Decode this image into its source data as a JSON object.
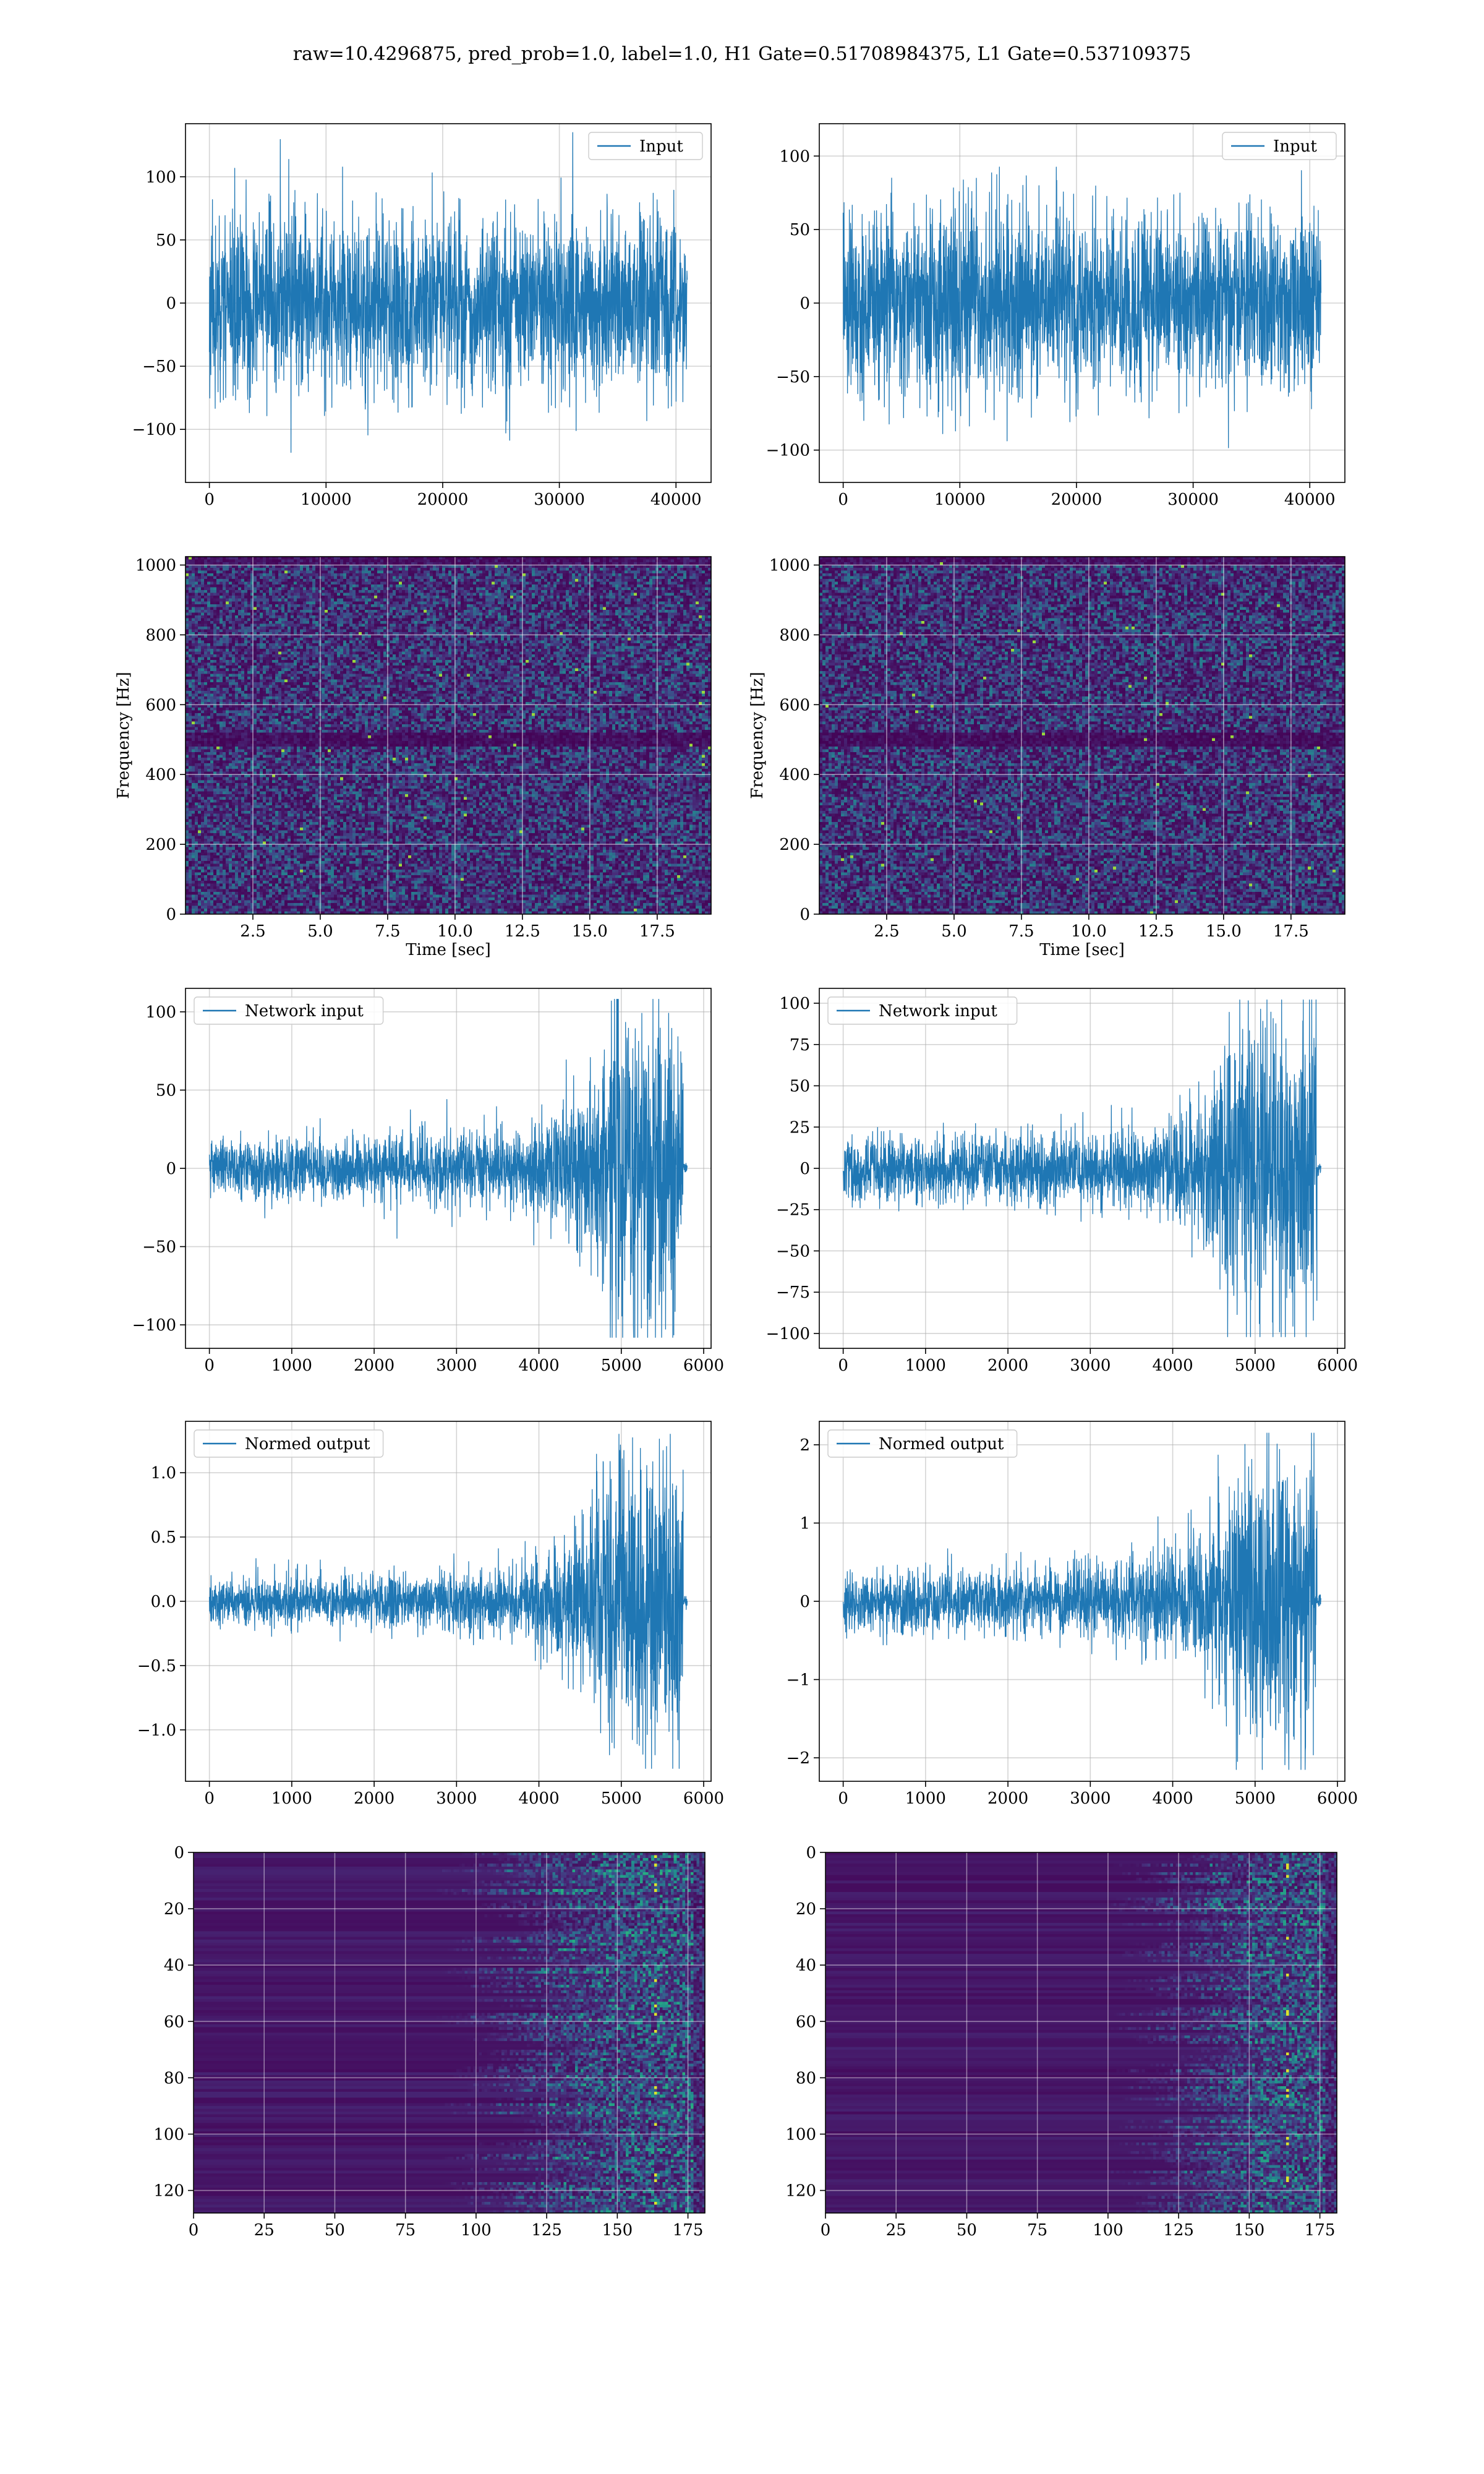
{
  "figure": {
    "suptitle": "raw=10.4296875, pred_prob=1.0, label=1.0, H1 Gate=0.51708984375, L1 Gate=0.537109375",
    "colors": {
      "line": "#1f77b4",
      "cmap_low": "#440154",
      "grid": "#b0b0b0"
    }
  },
  "chart_data": [
    {
      "id": "h1-input",
      "type": "line",
      "series": [
        {
          "name": "Input",
          "shape": "noise",
          "amplitude": 55,
          "max_abs": 135
        }
      ],
      "xlim": [
        -2048,
        43008
      ],
      "ylim": [
        -142,
        142
      ],
      "xticks": [
        0,
        10000,
        20000,
        30000,
        40000
      ],
      "xtick_labels": [
        "0",
        "10000",
        "20000",
        "30000",
        "40000"
      ],
      "yticks": [
        -100,
        -50,
        0,
        50,
        100
      ],
      "ytick_labels": [
        "−100",
        "−50",
        "0",
        "50",
        "100"
      ],
      "x_range": [
        0,
        40960
      ],
      "legend": "upper right",
      "grid": true,
      "xlabel": "",
      "ylabel": ""
    },
    {
      "id": "l1-input",
      "type": "line",
      "series": [
        {
          "name": "Input",
          "shape": "noise",
          "amplitude": 50,
          "max_abs": 110
        }
      ],
      "xlim": [
        -2048,
        43008
      ],
      "ylim": [
        -122,
        122
      ],
      "xticks": [
        0,
        10000,
        20000,
        30000,
        40000
      ],
      "xtick_labels": [
        "0",
        "10000",
        "20000",
        "30000",
        "40000"
      ],
      "yticks": [
        -100,
        -50,
        0,
        50,
        100
      ],
      "ytick_labels": [
        "−100",
        "−50",
        "0",
        "50",
        "100"
      ],
      "x_range": [
        0,
        40960
      ],
      "legend": "upper right",
      "grid": true,
      "xlabel": "",
      "ylabel": ""
    },
    {
      "id": "h1-spectrogram",
      "type": "heatmap",
      "xlabel": "Time [sec]",
      "ylabel": "Frequency [Hz]",
      "xlim": [
        0,
        19.5
      ],
      "ylim": [
        0,
        1024
      ],
      "xticks": [
        2.5,
        5.0,
        7.5,
        10.0,
        12.5,
        15.0,
        17.5
      ],
      "xtick_labels": [
        "2.5",
        "5.0",
        "7.5",
        "10.0",
        "12.5",
        "15.0",
        "17.5"
      ],
      "yticks": [
        0,
        200,
        400,
        600,
        800,
        1000
      ],
      "ytick_labels": [
        "0",
        "200",
        "400",
        "600",
        "800",
        "1000"
      ],
      "dark_band_hz": 500,
      "grid": true
    },
    {
      "id": "l1-spectrogram",
      "type": "heatmap",
      "xlabel": "Time [sec]",
      "ylabel": "Frequency [Hz]",
      "xlim": [
        0,
        19.5
      ],
      "ylim": [
        0,
        1024
      ],
      "xticks": [
        2.5,
        5.0,
        7.5,
        10.0,
        12.5,
        15.0,
        17.5
      ],
      "xtick_labels": [
        "2.5",
        "5.0",
        "7.5",
        "10.0",
        "12.5",
        "15.0",
        "17.5"
      ],
      "yticks": [
        0,
        200,
        400,
        600,
        800,
        1000
      ],
      "ytick_labels": [
        "0",
        "200",
        "400",
        "600",
        "800",
        "1000"
      ],
      "dark_band_hz": 500,
      "grid": true
    },
    {
      "id": "h1-network-input",
      "type": "line",
      "series": [
        {
          "name": "Network input",
          "shape": "chirp",
          "amplitude": 14,
          "max_abs": 108
        }
      ],
      "xlim": [
        -290,
        6090
      ],
      "ylim": [
        -115,
        115
      ],
      "xticks": [
        0,
        1000,
        2000,
        3000,
        4000,
        5000,
        6000
      ],
      "xtick_labels": [
        "0",
        "1000",
        "2000",
        "3000",
        "4000",
        "5000",
        "6000"
      ],
      "yticks": [
        -100,
        -50,
        0,
        50,
        100
      ],
      "ytick_labels": [
        "−100",
        "−50",
        "0",
        "50",
        "100"
      ],
      "x_range": [
        0,
        5800
      ],
      "legend": "upper left",
      "grid": true,
      "xlabel": "",
      "ylabel": ""
    },
    {
      "id": "l1-network-input",
      "type": "line",
      "series": [
        {
          "name": "Network input",
          "shape": "chirp",
          "amplitude": 14,
          "max_abs": 102
        }
      ],
      "xlim": [
        -290,
        6090
      ],
      "ylim": [
        -109,
        109
      ],
      "xticks": [
        0,
        1000,
        2000,
        3000,
        4000,
        5000,
        6000
      ],
      "xtick_labels": [
        "0",
        "1000",
        "2000",
        "3000",
        "4000",
        "5000",
        "6000"
      ],
      "yticks": [
        -100,
        -75,
        -50,
        -25,
        0,
        25,
        50,
        75,
        100
      ],
      "ytick_labels": [
        "−100",
        "−75",
        "−50",
        "−25",
        "0",
        "25",
        "50",
        "75",
        "100"
      ],
      "x_range": [
        0,
        5800
      ],
      "legend": "upper left",
      "grid": true,
      "xlabel": "",
      "ylabel": ""
    },
    {
      "id": "h1-normed-output",
      "type": "line",
      "series": [
        {
          "name": "Normed output",
          "shape": "chirp",
          "amplitude": 0.14,
          "max_abs": 1.3
        }
      ],
      "xlim": [
        -290,
        6090
      ],
      "ylim": [
        -1.4,
        1.4
      ],
      "xticks": [
        0,
        1000,
        2000,
        3000,
        4000,
        5000,
        6000
      ],
      "xtick_labels": [
        "0",
        "1000",
        "2000",
        "3000",
        "4000",
        "5000",
        "6000"
      ],
      "yticks": [
        -1.0,
        -0.5,
        0.0,
        0.5,
        1.0
      ],
      "ytick_labels": [
        "−1.0",
        "−0.5",
        "0.0",
        "0.5",
        "1.0"
      ],
      "x_range": [
        0,
        5800
      ],
      "legend": "upper left",
      "grid": true,
      "xlabel": "",
      "ylabel": ""
    },
    {
      "id": "l1-normed-output",
      "type": "line",
      "series": [
        {
          "name": "Normed output",
          "shape": "chirp",
          "amplitude": 0.3,
          "max_abs": 2.15
        }
      ],
      "xlim": [
        -290,
        6090
      ],
      "ylim": [
        -2.3,
        2.3
      ],
      "xticks": [
        0,
        1000,
        2000,
        3000,
        4000,
        5000,
        6000
      ],
      "xtick_labels": [
        "0",
        "1000",
        "2000",
        "3000",
        "4000",
        "5000",
        "6000"
      ],
      "yticks": [
        -2,
        -1,
        0,
        1,
        2
      ],
      "ytick_labels": [
        "−2",
        "−1",
        "0",
        "1",
        "2"
      ],
      "x_range": [
        0,
        5800
      ],
      "legend": "upper left",
      "grid": true,
      "xlabel": "",
      "ylabel": ""
    },
    {
      "id": "h1-feature-map",
      "type": "heatmap",
      "xlim": [
        0,
        181
      ],
      "ylim": [
        128,
        0
      ],
      "rows": 128,
      "cols": 181,
      "activation_onset": 105,
      "hot_col": 163,
      "xticks": [
        0,
        25,
        50,
        75,
        100,
        125,
        150,
        175
      ],
      "xtick_labels": [
        "0",
        "25",
        "50",
        "75",
        "100",
        "125",
        "150",
        "175"
      ],
      "yticks": [
        0,
        20,
        40,
        60,
        80,
        100,
        120
      ],
      "ytick_labels": [
        "0",
        "20",
        "40",
        "60",
        "80",
        "100",
        "120"
      ],
      "grid": true,
      "xlabel": "",
      "ylabel": ""
    },
    {
      "id": "l1-feature-map",
      "type": "heatmap",
      "xlim": [
        0,
        181
      ],
      "ylim": [
        128,
        0
      ],
      "rows": 128,
      "cols": 181,
      "activation_onset": 118,
      "hot_col": 163,
      "xticks": [
        0,
        25,
        50,
        75,
        100,
        125,
        150,
        175
      ],
      "xtick_labels": [
        "0",
        "25",
        "50",
        "75",
        "100",
        "125",
        "150",
        "175"
      ],
      "yticks": [
        0,
        20,
        40,
        60,
        80,
        100,
        120
      ],
      "ytick_labels": [
        "0",
        "20",
        "40",
        "60",
        "80",
        "100",
        "120"
      ],
      "grid": true,
      "xlabel": "",
      "ylabel": ""
    }
  ]
}
